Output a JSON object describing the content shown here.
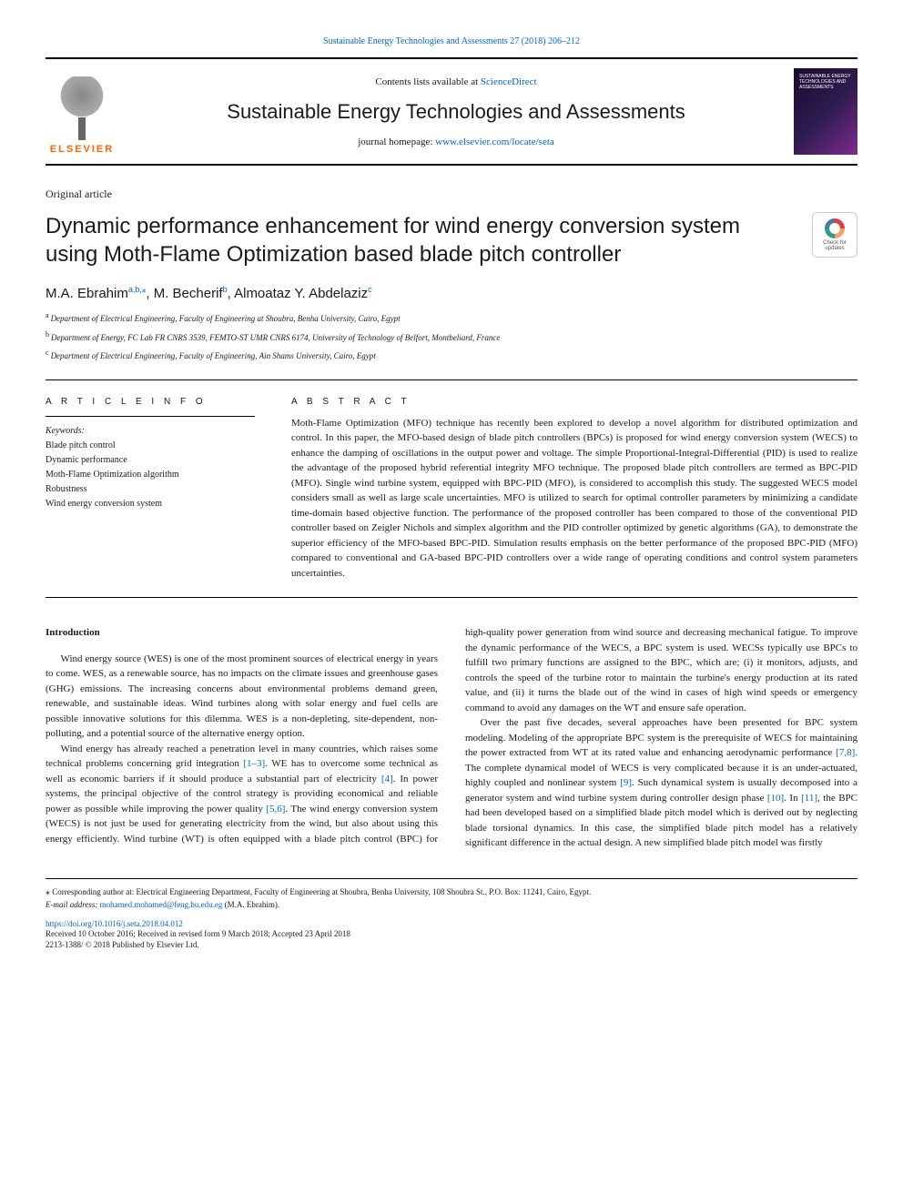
{
  "top_link": {
    "prefix": "",
    "journal_ref": "Sustainable Energy Technologies and Assessments 27 (2018) 206–212"
  },
  "header": {
    "contents_prefix": "Contents lists available at ",
    "contents_link": "ScienceDirect",
    "journal_name": "Sustainable Energy Technologies and Assessments",
    "homepage_prefix": "journal homepage: ",
    "homepage_url": "www.elsevier.com/locate/seta",
    "elsevier_label": "ELSEVIER",
    "cover_text": "SUSTAINABLE ENERGY TECHNOLOGIES AND ASSESSMENTS"
  },
  "article": {
    "type": "Original article",
    "title": "Dynamic performance enhancement for wind energy conversion system using Moth-Flame Optimization based blade pitch controller",
    "crossmark": "Check for updates"
  },
  "authors": {
    "line_html_parts": [
      {
        "t": "M.A. Ebrahim",
        "s": "a,b,"
      },
      {
        "t": "",
        "s": "⁎"
      },
      {
        "t": ", M. Becherif",
        "s": "b"
      },
      {
        "t": ", Almoataz Y. Abdelaziz",
        "s": "c"
      }
    ]
  },
  "affiliations": [
    {
      "sup": "a",
      "text": "Department of Electrical Engineering, Faculty of Engineering at Shoubra, Benha University, Cairo, Egypt"
    },
    {
      "sup": "b",
      "text": "Department of Energy, FC Lab FR CNRS 3539, FEMTO-ST UMR CNRS 6174, University of Technology of Belfort, Montbeliard, France"
    },
    {
      "sup": "c",
      "text": "Department of Electrical Engineering, Faculty of Engineering, Ain Shams University, Cairo, Egypt"
    }
  ],
  "info": {
    "heading": "A R T I C L E  I N F O",
    "keywords_label": "Keywords:",
    "keywords": [
      "Blade pitch control",
      "Dynamic performance",
      "Moth-Flame Optimization algorithm",
      "Robustness",
      "Wind energy conversion system"
    ]
  },
  "abstract": {
    "heading": "A B S T R A C T",
    "text": "Moth-Flame Optimization (MFO) technique has recently been explored to develop a novel algorithm for distributed optimization and control. In this paper, the MFO-based design of blade pitch controllers (BPCs) is proposed for wind energy conversion system (WECS) to enhance the damping of oscillations in the output power and voltage. The simple Proportional-Integral-Differential (PID) is used to realize the advantage of the proposed hybrid referential integrity MFO technique. The proposed blade pitch controllers are termed as BPC-PID (MFO). Single wind turbine system, equipped with BPC-PID (MFO), is considered to accomplish this study. The suggested WECS model considers small as well as large scale uncertainties. MFO is utilized to search for optimal controller parameters by minimizing a candidate time-domain based objective function. The performance of the proposed controller has been compared to those of the conventional PID controller based on Zeigler Nichols and simplex algorithm and the PID controller optimized by genetic algorithms (GA), to demonstrate the superior efficiency of the MFO-based BPC-PID. Simulation results emphasis on the better performance of the proposed BPC-PID (MFO) compared to conventional and GA-based BPC-PID controllers over a wide range of operating conditions and control system parameters uncertainties."
  },
  "body": {
    "intro_heading": "Introduction",
    "p1": "Wind energy source (WES) is one of the most prominent sources of electrical energy in years to come. WES, as a renewable source, has no impacts on the climate issues and greenhouse gases (GHG) emissions. The increasing concerns about environmental problems demand green, renewable, and sustainable ideas. Wind turbines along with solar energy and fuel cells are possible innovative solutions for this dilemma. WES is a non-depleting, site-dependent, non-polluting, and a potential source of the alternative energy option.",
    "p2a": "Wind energy has already reached a penetration level in many countries, which raises some technical problems concerning grid integration ",
    "p2_c1": "[1–3]",
    "p2b": ". WE has to overcome some technical as well as economic barriers if it should produce a substantial part of electricity ",
    "p2_c2": "[4]",
    "p2c": ". In power systems, the principal objective of the control strategy is providing economical and reliable power as possible while improving the power quality ",
    "p2_c3": "[5,6]",
    "p2d": ". The wind energy conversion system (WECS) is not just be used for generating electricity from the wind, but also about using this energy efficiently. Wind turbine (WT) is often equipped with a blade pitch control (BPC) for high-quality power generation from ",
    "p3": "wind source and decreasing mechanical fatigue. To improve the dynamic performance of the WECS, a BPC system is used. WECSs typically use BPCs to fulfill two primary functions are assigned to the BPC, which are; (i) it monitors, adjusts, and controls the speed of the turbine rotor to maintain the turbine's energy production at its rated value, and (ii) it turns the blade out of the wind in cases of high wind speeds or emergency command to avoid any damages on the WT and ensure safe operation.",
    "p4a": "Over the past five decades, several approaches have been presented for BPC system modeling. Modeling of the appropriate BPC system is the prerequisite of WECS for maintaining the power extracted from WT at its rated value and enhancing aerodynamic performance ",
    "p4_c1": "[7,8]",
    "p4b": ". The complete dynamical model of WECS is very complicated because it is an under-actuated, highly coupled and nonlinear system ",
    "p4_c2": "[9]",
    "p4c": ". Such dynamical system is usually decomposed into a generator system and wind turbine system during controller design phase ",
    "p4_c3": "[10]",
    "p4d": ". In ",
    "p4_c4": "[11]",
    "p4e": ", the BPC had been developed based on a simplified blade pitch model which is derived out by neglecting blade torsional dynamics. In this case, the simplified blade pitch model has a relatively significant difference in the actual design. A new simplified blade pitch model was firstly"
  },
  "footer": {
    "corr_star": "⁎",
    "corr_text": " Corresponding author at: Electrical Engineering Department, Faculty of Engineering at Shoubra, Benha University, 108 Shoubra St., P.O. Box: 11241, Cairo, Egypt.",
    "email_label": "E-mail address: ",
    "email": "mohamed.mohamed@feng.bu.edu.eg",
    "email_suffix": " (M.A. Ebrahim).",
    "doi": "https://doi.org/10.1016/j.seta.2018.04.012",
    "received": "Received 10 October 2016; Received in revised form 9 March 2018; Accepted 23 April 2018",
    "copyright": "2213-1388/ © 2018 Published by Elsevier Ltd."
  },
  "colors": {
    "link": "#0066cc",
    "elsevier_orange": "#ff6600",
    "text": "#1a1a1a",
    "rule": "#000000"
  },
  "typography": {
    "body_pt": 11,
    "title_pt": 24,
    "journal_pt": 22,
    "authors_pt": 15,
    "small_pt": 9
  }
}
